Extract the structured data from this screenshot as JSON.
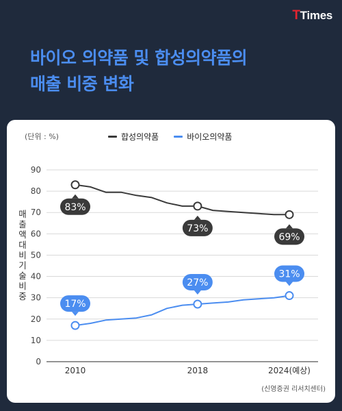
{
  "logo": {
    "text": "Times",
    "accent": "T"
  },
  "headline": {
    "line1": "바이오 의약품 및 합성의약품의",
    "line2": "매출 비중 변화"
  },
  "colors": {
    "background": "#1f2a3c",
    "headline": "#4b8df0",
    "synthetic": "#3a3a3a",
    "bio": "#4b8df0",
    "logo_accent": "#e4242f"
  },
  "chart_data": {
    "type": "line",
    "unit_note": "(단위 : %)",
    "ylabel": "매출액 대비 기술비중",
    "ylim": [
      0,
      90
    ],
    "yticks": [
      0,
      10,
      20,
      30,
      40,
      50,
      60,
      70,
      80,
      90
    ],
    "xlim": [
      2010,
      2024
    ],
    "xticks": [
      {
        "value": 2010,
        "label": "2010"
      },
      {
        "value": 2018,
        "label": "2018"
      },
      {
        "value": 2024,
        "label": "2024(예상)"
      }
    ],
    "grid": true,
    "legend_position": "top-center",
    "series": [
      {
        "name": "합성의약품",
        "color": "#3a3a3a",
        "x": [
          2010,
          2011,
          2012,
          2013,
          2014,
          2015,
          2016,
          2017,
          2018,
          2019,
          2020,
          2021,
          2022,
          2023,
          2024
        ],
        "values": [
          83,
          82,
          79.5,
          79.5,
          78,
          77,
          74.5,
          73,
          73,
          71,
          70.5,
          70,
          69.5,
          69,
          69
        ],
        "labeled_points": [
          {
            "x": 2010,
            "label": "83%"
          },
          {
            "x": 2018,
            "label": "73%"
          },
          {
            "x": 2024,
            "label": "69%"
          }
        ]
      },
      {
        "name": "바이오의약품",
        "color": "#4b8df0",
        "x": [
          2010,
          2011,
          2012,
          2013,
          2014,
          2015,
          2016,
          2017,
          2018,
          2019,
          2020,
          2021,
          2022,
          2023,
          2024
        ],
        "values": [
          17,
          18,
          19.5,
          20,
          20.5,
          22,
          25,
          26.5,
          27,
          27.5,
          28,
          29,
          29.5,
          30,
          31
        ],
        "labeled_points": [
          {
            "x": 2010,
            "label": "17%"
          },
          {
            "x": 2018,
            "label": "27%"
          },
          {
            "x": 2024,
            "label": "31%"
          }
        ]
      }
    ]
  },
  "source": "(신영증권 리서치센터)"
}
